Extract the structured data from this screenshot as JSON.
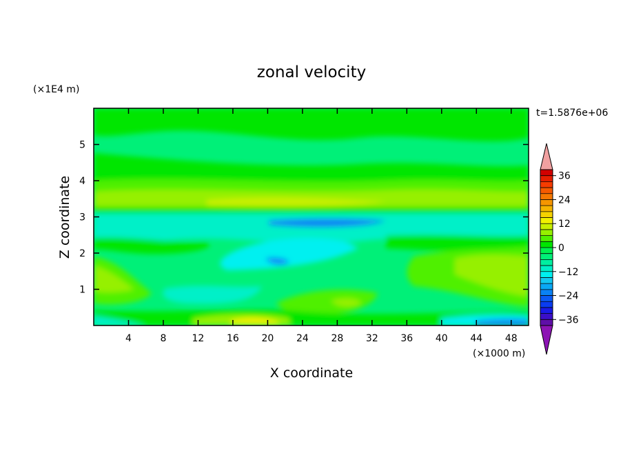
{
  "chart_data": {
    "type": "heatmap",
    "title": "zonal velocity",
    "xlabel": "X coordinate",
    "ylabel": "Z coordinate",
    "x_unit": "(×1000 m)",
    "y_unit": "(×1E4 m)",
    "time_label": "t=1.5876e+06",
    "xlim": [
      0,
      50
    ],
    "ylim": [
      0,
      6
    ],
    "x_ticks": [
      4,
      8,
      12,
      16,
      20,
      24,
      28,
      32,
      36,
      40,
      44,
      48
    ],
    "y_ticks": [
      1,
      2,
      3,
      4,
      5
    ],
    "colorbar": {
      "levels": [
        -39,
        -36,
        -33,
        -30,
        -27,
        -24,
        -21,
        -18,
        -15,
        -12,
        -9,
        -6,
        -3,
        0,
        3,
        6,
        9,
        12,
        15,
        18,
        21,
        24,
        27,
        30,
        33,
        36,
        39
      ],
      "labels": [
        36,
        24,
        12,
        0,
        -12,
        -24,
        -36
      ],
      "colors": [
        "#5f0fa8",
        "#3b0fc8",
        "#1a1ae6",
        "#0a3cf0",
        "#0a5af5",
        "#0a82f5",
        "#0aa8f5",
        "#14c8f0",
        "#00f0f0",
        "#00f0c8",
        "#00f0a0",
        "#00f078",
        "#00f050",
        "#00e600",
        "#50f000",
        "#96f000",
        "#c8f000",
        "#f0f000",
        "#f5d200",
        "#f5b400",
        "#f59600",
        "#f57800",
        "#f55a00",
        "#f53c00",
        "#e61e00",
        "#d20000"
      ],
      "over_color": "#f0a0a0",
      "under_color": "#8c14b4"
    },
    "grid": false,
    "legend": "colorbar-right"
  }
}
